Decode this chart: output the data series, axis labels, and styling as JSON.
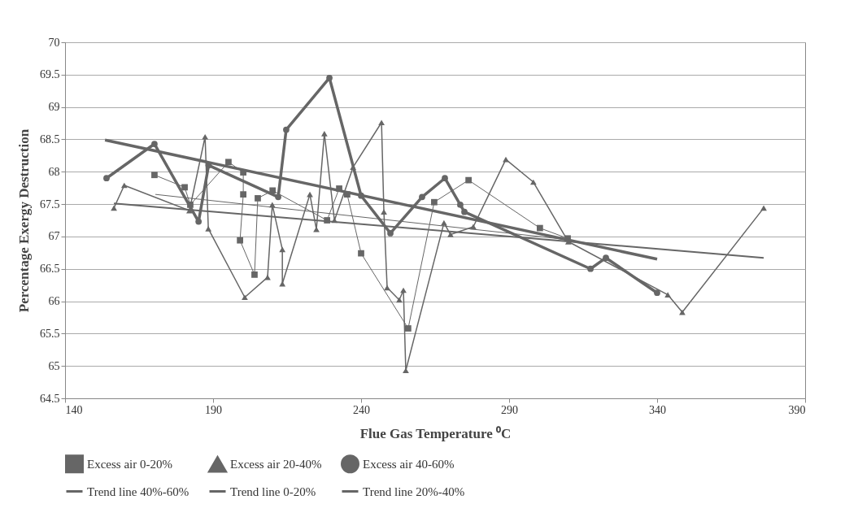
{
  "chart_data": {
    "type": "line",
    "xlabel": "Flue Gas Temperature ⁰C",
    "ylabel": "Percentage Exergy Destruction",
    "xlim": [
      140,
      390
    ],
    "xticks": [
      140,
      190,
      240,
      290,
      340,
      390
    ],
    "ylim": [
      64.5,
      70
    ],
    "yticks": [
      64.5,
      65,
      65.5,
      66,
      66.5,
      67,
      67.5,
      68,
      68.5,
      69,
      69.5,
      70
    ],
    "grid": "y",
    "legend": "bottom",
    "line_style": "solid",
    "series": [
      {
        "name": "Excess air 0-20%",
        "color": "#666666",
        "marker": "square",
        "x": [
          170.2,
          180.4,
          182.3,
          195.2,
          200.2,
          200.2,
          199.1,
          204,
          205.1,
          210.1,
          228.5,
          232.6,
          235.3,
          240,
          255.9,
          264.7,
          276.3,
          300.4,
          309.8
        ],
        "values": [
          67.95,
          67.76,
          67.49,
          68.15,
          67.99,
          67.65,
          66.94,
          66.41,
          67.59,
          67.71,
          67.25,
          67.74,
          67.65,
          66.74,
          65.58,
          67.53,
          67.87,
          67.13,
          66.97
        ]
      },
      {
        "name": "Excess air 20-40%",
        "color": "#666666",
        "marker": "triangle",
        "x": [
          156.5,
          160,
          182,
          187.3,
          188.4,
          200.7,
          208.4,
          210,
          213.4,
          213.4,
          222.7,
          224.9,
          227.6,
          231,
          237.3,
          246.9,
          247.7,
          248.8,
          252.9,
          254.3,
          255.1,
          268,
          270.2,
          277.9,
          288.9,
          298.2,
          310,
          343.6,
          348.5,
          376
        ],
        "values": [
          67.44,
          67.79,
          67.4,
          68.54,
          67.12,
          66.06,
          66.37,
          67.49,
          66.8,
          66.27,
          67.65,
          67.11,
          68.59,
          67.25,
          68.07,
          68.76,
          67.38,
          66.21,
          66.02,
          66.17,
          64.93,
          67.21,
          67.03,
          67.15,
          68.19,
          67.84,
          66.92,
          66.1,
          65.83,
          67.44
        ]
      },
      {
        "name": "Excess air 40-60%",
        "color": "#666666",
        "marker": "circle",
        "x": [
          154,
          170.2,
          185.1,
          188.5,
          212,
          214.7,
          229.3,
          240,
          249.9,
          260.6,
          268.3,
          273.5,
          274.9,
          317.5,
          322.7,
          340
        ],
        "values": [
          67.9,
          68.43,
          67.23,
          68.1,
          67.61,
          68.65,
          69.45,
          67.63,
          67.05,
          67.61,
          67.9,
          67.49,
          67.38,
          66.5,
          66.67,
          66.13
        ]
      },
      {
        "name": "Trend line 40%-60%",
        "color": "#666666",
        "marker": "none",
        "x": [
          153.5,
          340
        ],
        "values": [
          68.49,
          66.65
        ]
      },
      {
        "name": "Trend line 0-20%",
        "color": "#666666",
        "marker": "none",
        "x": [
          170.5,
          310
        ],
        "values": [
          67.65,
          66.95
        ]
      },
      {
        "name": "Trend line 20%-40%",
        "color": "#666666",
        "marker": "none",
        "x": [
          156.5,
          376
        ],
        "values": [
          67.51,
          66.67
        ]
      }
    ]
  }
}
